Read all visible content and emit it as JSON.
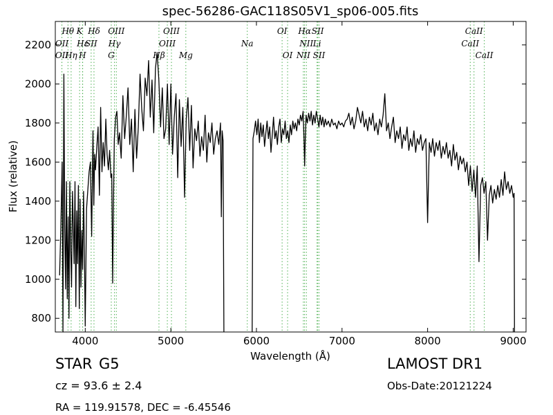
{
  "chart_data": {
    "type": "line",
    "title": "spec-56286-GAC118S05V1_sp06-005.fits",
    "xlabel": "Wavelength (Å)",
    "ylabel": "Flux (relative)",
    "xlim": [
      3650,
      9150
    ],
    "ylim": [
      730,
      2320
    ],
    "xticks": [
      4000,
      5000,
      6000,
      7000,
      8000,
      9000
    ],
    "yticks": [
      800,
      1000,
      1200,
      1400,
      1600,
      1800,
      2000,
      2200
    ],
    "grid": false,
    "line_color": "#000000",
    "marker_color": "#4caf50",
    "series": [
      {
        "x": [
          3700,
          3715,
          3730,
          3740,
          3750,
          3760,
          3770,
          3780,
          3790,
          3800,
          3810,
          3820,
          3830,
          3840,
          3850,
          3860,
          3870,
          3880,
          3890,
          3900,
          3910,
          3920,
          3930,
          3940,
          3950,
          3960,
          3970,
          3980,
          3990,
          4000,
          4015,
          4030,
          4045,
          4060,
          4075,
          4090,
          4100,
          4110,
          4120,
          4135,
          4150,
          4165,
          4180,
          4195,
          4210,
          4225,
          4240,
          4255,
          4270,
          4285,
          4300,
          4310,
          4320,
          4330,
          4340,
          4355,
          4370,
          4385,
          4400,
          4420,
          4440,
          4460,
          4480,
          4500,
          4520,
          4540,
          4560,
          4580,
          4600,
          4620,
          4640,
          4660,
          4680,
          4700,
          4720,
          4740,
          4760,
          4780,
          4800,
          4820,
          4840,
          4860,
          4880,
          4900,
          4920,
          4940,
          4960,
          4980,
          5000,
          5020,
          5040,
          5060,
          5080,
          5100,
          5120,
          5140,
          5160,
          5180,
          5200,
          5220,
          5240,
          5260,
          5280,
          5300,
          5320,
          5340,
          5360,
          5380,
          5400,
          5420,
          5440,
          5460,
          5480,
          5500,
          5520,
          5540,
          5560,
          5580,
          5590,
          5600,
          5610,
          5620
        ],
        "y": [
          1020,
          1260,
          1600,
          730,
          2050,
          1280,
          950,
          1500,
          900,
          1320,
          800,
          1500,
          1150,
          960,
          1450,
          1280,
          1080,
          1500,
          860,
          1350,
          1080,
          1480,
          850,
          1410,
          960,
          1250,
          1050,
          1450,
          1150,
          760,
          1360,
          1460,
          1550,
          1600,
          1220,
          1760,
          1380,
          1640,
          1560,
          1680,
          1780,
          1430,
          1880,
          1550,
          1700,
          1580,
          1820,
          1640,
          1560,
          1660,
          1520,
          1540,
          980,
          1400,
          1720,
          1830,
          1860,
          1690,
          1750,
          1620,
          1940,
          1720,
          1840,
          1980,
          1690,
          1820,
          1550,
          1870,
          1620,
          1780,
          2050,
          1870,
          1760,
          2030,
          1940,
          2120,
          1830,
          2020,
          1750,
          2080,
          2160,
          2020,
          1780,
          1980,
          1720,
          1770,
          2000,
          1690,
          2000,
          1640,
          1830,
          1950,
          1520,
          1920,
          1680,
          1880,
          1420,
          1820,
          1930,
          1660,
          1890,
          1570,
          1770,
          1710,
          1810,
          1630,
          1730,
          1660,
          1840,
          1600,
          1750,
          1700,
          1800,
          1640,
          1720,
          1760,
          1690,
          1800,
          1320,
          1760,
          1710,
          730
        ]
      },
      {
        "x": [
          5950,
          5960,
          5975,
          5990,
          6005,
          6020,
          6035,
          6050,
          6065,
          6080,
          6095,
          6110,
          6125,
          6140,
          6155,
          6170,
          6185,
          6200,
          6215,
          6230,
          6245,
          6260,
          6275,
          6290,
          6305,
          6320,
          6335,
          6350,
          6365,
          6380,
          6395,
          6410,
          6425,
          6440,
          6455,
          6470,
          6485,
          6500,
          6515,
          6530,
          6545,
          6555,
          6563,
          6570,
          6580,
          6595,
          6610,
          6625,
          6640,
          6655,
          6670,
          6685,
          6700,
          6715,
          6730,
          6745,
          6760,
          6775,
          6790,
          6805,
          6820,
          6840,
          6860,
          6880,
          6900,
          6920,
          6940,
          6960,
          6980,
          7000,
          7020,
          7040,
          7060,
          7080,
          7100,
          7120,
          7140,
          7160,
          7180,
          7200,
          7220,
          7240,
          7260,
          7280,
          7300,
          7320,
          7340,
          7360,
          7380,
          7400,
          7420,
          7440,
          7460,
          7480,
          7500,
          7520,
          7540,
          7560,
          7580,
          7600,
          7620,
          7640,
          7660,
          7680,
          7700,
          7720,
          7740,
          7760,
          7780,
          7800,
          7820,
          7840,
          7860,
          7880,
          7900,
          7920,
          7940,
          7960,
          7980,
          8000,
          8020,
          8040,
          8060,
          8080,
          8100,
          8120,
          8140,
          8160,
          8180,
          8200,
          8220,
          8240,
          8260,
          8280,
          8300,
          8320,
          8340,
          8360,
          8380,
          8400,
          8420,
          8440,
          8460,
          8480,
          8500,
          8520,
          8540,
          8560,
          8580,
          8600,
          8620,
          8640,
          8660,
          8680,
          8700,
          8720,
          8740,
          8760,
          8780,
          8800,
          8820,
          8840,
          8860,
          8880,
          8900,
          8920,
          8940,
          8960,
          8980,
          9000,
          9010,
          9015
        ],
        "y": [
          730,
          1720,
          1760,
          1810,
          1740,
          1820,
          1700,
          1800,
          1730,
          1790,
          1680,
          1750,
          1810,
          1720,
          1780,
          1650,
          1740,
          1830,
          1720,
          1760,
          1690,
          1780,
          1820,
          1700,
          1770,
          1740,
          1810,
          1720,
          1760,
          1700,
          1790,
          1740,
          1810,
          1770,
          1800,
          1760,
          1820,
          1790,
          1840,
          1810,
          1860,
          1730,
          1580,
          1700,
          1840,
          1800,
          1850,
          1810,
          1860,
          1790,
          1840,
          1800,
          1860,
          1820,
          1780,
          1840,
          1790,
          1830,
          1780,
          1820,
          1790,
          1810,
          1780,
          1820,
          1790,
          1800,
          1770,
          1810,
          1790,
          1800,
          1780,
          1810,
          1820,
          1850,
          1790,
          1830,
          1770,
          1810,
          1880,
          1840,
          1800,
          1860,
          1780,
          1820,
          1760,
          1830,
          1790,
          1850,
          1760,
          1800,
          1740,
          1820,
          1780,
          1840,
          1950,
          1760,
          1800,
          1720,
          1780,
          1830,
          1700,
          1760,
          1720,
          1780,
          1670,
          1740,
          1710,
          1780,
          1660,
          1720,
          1680,
          1760,
          1650,
          1720,
          1690,
          1740,
          1660,
          1700,
          1720,
          1290,
          1700,
          1650,
          1720,
          1630,
          1700,
          1660,
          1710,
          1620,
          1680,
          1640,
          1700,
          1620,
          1660,
          1580,
          1690,
          1610,
          1650,
          1560,
          1630,
          1590,
          1620,
          1550,
          1600,
          1480,
          1580,
          1450,
          1560,
          1420,
          1580,
          1090,
          1480,
          1520,
          1440,
          1500,
          1200,
          1430,
          1480,
          1390,
          1460,
          1410,
          1480,
          1420,
          1510,
          1430,
          1550,
          1460,
          1500,
          1440,
          1480,
          1420,
          1440,
          730
        ]
      }
    ],
    "lines": [
      {
        "label": "Hθ",
        "wavelength": 3798,
        "row": 1
      },
      {
        "label": "K",
        "wavelength": 3934,
        "row": 1
      },
      {
        "label": "Hδ",
        "wavelength": 4102,
        "row": 1
      },
      {
        "label": "OIII",
        "wavelength": 4363,
        "row": 1
      },
      {
        "label": "OIII",
        "wavelength": 5007,
        "row": 1
      },
      {
        "label": "OI",
        "wavelength": 6300,
        "row": 1
      },
      {
        "label": "Hα",
        "wavelength": 6563,
        "row": 1
      },
      {
        "label": "SII",
        "wavelength": 6716,
        "row": 1
      },
      {
        "label": "CaII",
        "wavelength": 8542,
        "row": 1
      },
      {
        "label": "OII",
        "wavelength": 3727,
        "row": 2
      },
      {
        "label": "Hε",
        "wavelength": 3970,
        "row": 2
      },
      {
        "label": "SII",
        "wavelength": 4069,
        "row": 2
      },
      {
        "label": "Hγ",
        "wavelength": 4341,
        "row": 2
      },
      {
        "label": "OIII",
        "wavelength": 4959,
        "row": 2
      },
      {
        "label": "Na",
        "wavelength": 5893,
        "row": 2
      },
      {
        "label": "NII",
        "wavelength": 6584,
        "row": 2
      },
      {
        "label": "Li",
        "wavelength": 6708,
        "row": 2
      },
      {
        "label": "CaII",
        "wavelength": 8498,
        "row": 2
      },
      {
        "label": "OII",
        "wavelength": 3727,
        "row": 3
      },
      {
        "label": "Hη",
        "wavelength": 3835,
        "row": 3
      },
      {
        "label": "H",
        "wavelength": 3968,
        "row": 3
      },
      {
        "label": "G",
        "wavelength": 4304,
        "row": 3
      },
      {
        "label": "Hβ",
        "wavelength": 4861,
        "row": 3
      },
      {
        "label": "Mg",
        "wavelength": 5175,
        "row": 3
      },
      {
        "label": "OI",
        "wavelength": 6364,
        "row": 3
      },
      {
        "label": "NII",
        "wavelength": 6548,
        "row": 3
      },
      {
        "label": "SII",
        "wavelength": 6731,
        "row": 3
      },
      {
        "label": "CaII",
        "wavelength": 8662,
        "row": 3
      }
    ]
  },
  "info": {
    "class_label": "STAR",
    "subclass": "G5",
    "cz": "cz = 93.6 ± 2.4",
    "survey": "LAMOST DR1",
    "obs_date": "Obs-Date:20121224",
    "coords": "RA = 119.91578, DEC = -6.45546"
  }
}
